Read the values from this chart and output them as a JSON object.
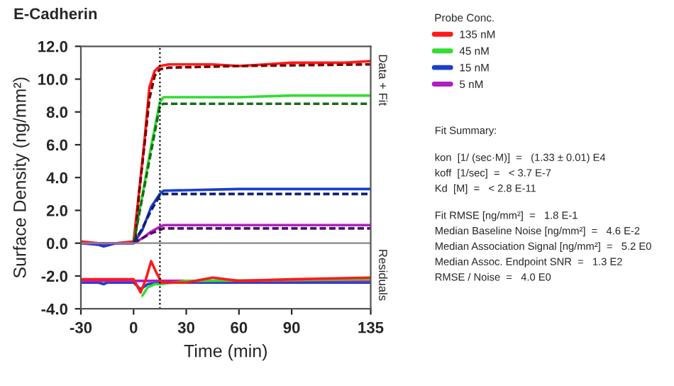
{
  "chart_data": {
    "type": "line",
    "title": "E-Cadherin",
    "xlabel": "Time (min)",
    "ylabel": "Surface Density (ng/mm²)",
    "legend_title": "Probe Conc.",
    "xlim": [
      -30,
      135
    ],
    "xticks": [
      -30,
      0,
      30,
      60,
      90,
      135
    ],
    "ylim": [
      -4,
      12
    ],
    "yticks": [
      {
        "value": -4,
        "label": "-4.0"
      },
      {
        "value": -2,
        "label": "-2.0"
      },
      {
        "value": 0,
        "label": "0.0"
      },
      {
        "value": 2,
        "label": "2.0"
      },
      {
        "value": 4,
        "label": "4.0"
      },
      {
        "value": 6,
        "label": "6.0"
      },
      {
        "value": 8,
        "label": "8.0"
      },
      {
        "value": 10,
        "label": "10.0"
      },
      {
        "value": 12,
        "label": "12.0"
      }
    ],
    "grid": false,
    "legend": "top right",
    "marker": "none",
    "series": [
      {
        "name": "135 nM",
        "color": "#ff1a1a",
        "line_style": "solid",
        "x": [
          -30,
          -20,
          -17,
          -10,
          0,
          3,
          6,
          9,
          12,
          15,
          20,
          30,
          45,
          60,
          75,
          90,
          105,
          120,
          135
        ],
        "values": [
          0.1,
          0,
          -0.1,
          0,
          0.1,
          3,
          6,
          9.5,
          10.5,
          10.8,
          10.9,
          10.9,
          10.9,
          10.8,
          10.9,
          11.0,
          11.0,
          11.0,
          11.1
        ]
      },
      {
        "name": "45 nM",
        "color": "#33dd33",
        "line_style": "solid",
        "x": [
          -30,
          0,
          5,
          10,
          15,
          17,
          30,
          60,
          90,
          135
        ],
        "values": [
          0,
          0,
          2.9,
          5.9,
          8.6,
          8.9,
          8.9,
          8.9,
          9.0,
          9.0
        ]
      },
      {
        "name": "15 nM",
        "color": "#1a3fcc",
        "line_style": "solid",
        "x": [
          -30,
          -20,
          -17,
          -10,
          0,
          5,
          10,
          15,
          17,
          60,
          135
        ],
        "values": [
          0,
          -0.1,
          -0.2,
          0,
          0,
          0.8,
          2.2,
          3.0,
          3.2,
          3.3,
          3.3
        ]
      },
      {
        "name": "5 nM",
        "color": "#b020c0",
        "line_style": "solid",
        "x": [
          -30,
          0,
          5,
          10,
          15,
          17,
          135
        ],
        "values": [
          0,
          0,
          0.3,
          0.7,
          1.0,
          1.1,
          1.1
        ]
      },
      {
        "color": "#7a0000",
        "line_style": "dashed",
        "x": [
          1,
          3,
          6,
          9,
          12,
          15,
          20,
          60,
          135
        ],
        "values": [
          0.2,
          2.9,
          5.8,
          8.8,
          10.2,
          10.6,
          10.7,
          10.8,
          10.9
        ]
      },
      {
        "color": "#1a6a1a",
        "line_style": "dashed",
        "x": [
          0,
          5,
          10,
          15,
          17,
          135
        ],
        "values": [
          0,
          2.8,
          5.6,
          8.4,
          8.5,
          8.5
        ]
      },
      {
        "color": "#102070",
        "line_style": "dashed",
        "x": [
          0,
          5,
          10,
          15,
          17,
          135
        ],
        "values": [
          0,
          0.9,
          2.0,
          2.9,
          3.0,
          3.0
        ]
      },
      {
        "color": "#501060",
        "line_style": "dashed",
        "x": [
          0,
          5,
          10,
          15,
          17,
          135
        ],
        "values": [
          0,
          0.3,
          0.6,
          0.8,
          0.9,
          0.9
        ]
      },
      {
        "color": "#1a3fcc",
        "line_style": "solid",
        "x": [
          -30,
          -20,
          -17,
          -15,
          0,
          4,
          8,
          15,
          135
        ],
        "values": [
          -2.4,
          -2.4,
          -2.5,
          -2.4,
          -2.4,
          -2.8,
          -2.5,
          -2.4,
          -2.4
        ]
      },
      {
        "color": "#b020c0",
        "line_style": "solid",
        "x": [
          -30,
          135
        ],
        "values": [
          -2.3,
          -2.3
        ]
      },
      {
        "color": "#33dd33",
        "line_style": "solid",
        "x": [
          5,
          8,
          12,
          15,
          30,
          135
        ],
        "values": [
          -3.2,
          -2.7,
          -2.5,
          -2.5,
          -2.3,
          -2.2
        ]
      },
      {
        "color": "#ff1a1a",
        "line_style": "solid",
        "x": [
          -30,
          0,
          4,
          7,
          10,
          13,
          16,
          30,
          45,
          60,
          90,
          135
        ],
        "values": [
          -2.2,
          -2.2,
          -3.0,
          -2.2,
          -1.1,
          -1.8,
          -2.4,
          -2.4,
          -2.1,
          -2.3,
          -2.2,
          -2.1
        ]
      }
    ],
    "ref_lines": [
      {
        "axis": "x",
        "value": 15,
        "color": "#000000",
        "line_style": "dotted"
      },
      {
        "axis": "y",
        "value": 0,
        "color": "#888888",
        "line_style": "solid"
      }
    ],
    "annotations": [
      "Data + Fit",
      "Residuals",
      "Fit Summary:",
      "kon  [1/ (sec·M)]  =   (1.33 ± 0.01) E4",
      "koff  [1/sec]  =   < 3.7 E-7",
      "Kd  [M]  =   < 2.8 E-11",
      "Fit RMSE [ng/mm²]  =   1.8 E-1",
      "Median Baseline Noise [ng/mm²]  =   4.6 E-2",
      "Median Association Signal [ng/mm²]  =   5.2 E0",
      "Median Assoc. Endpoint SNR  =   1.3 E2",
      "RMSE / Noise  =   4.0 E0"
    ]
  }
}
